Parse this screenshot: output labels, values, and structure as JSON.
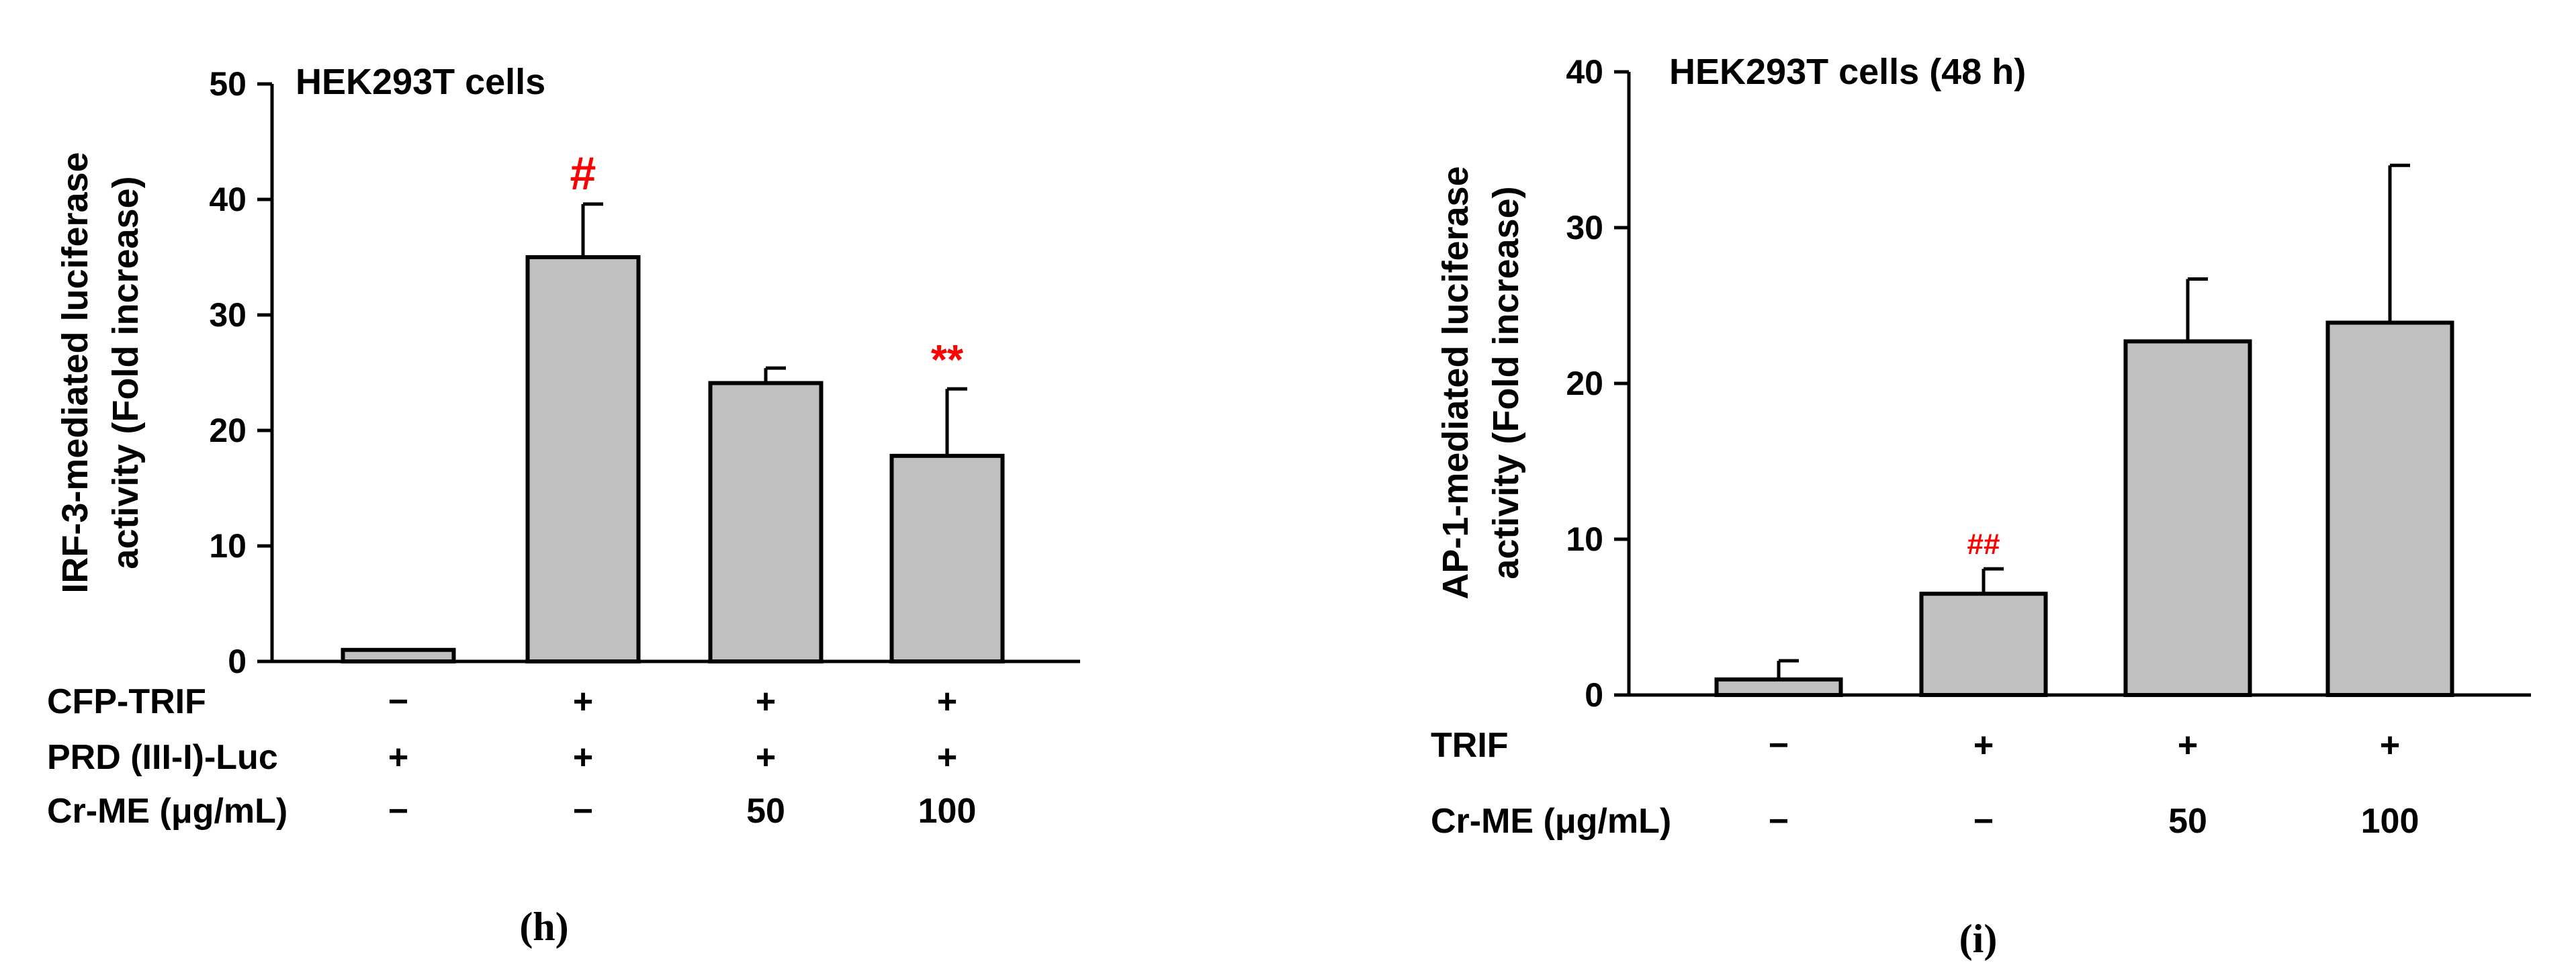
{
  "chart_data": [
    {
      "type": "bar",
      "panel_label": "(h)",
      "title": "HEK293T cells",
      "ylabel_line1": "IRF-3-mediated luciferase",
      "ylabel_line2": "activity (Fold increase)",
      "ylim": [
        0,
        50
      ],
      "yticks": [
        "0",
        "10",
        "20",
        "30",
        "40",
        "50"
      ],
      "ytick_values": [
        0,
        10,
        20,
        30,
        40,
        50
      ],
      "values": [
        1.0,
        35.0,
        24.1,
        17.8
      ],
      "errors": [
        0,
        4.6,
        1.3,
        5.8
      ],
      "bar_color": "#c0c0c0",
      "annotations": [
        "",
        "#",
        "",
        "**"
      ],
      "annotation_color": "#ff0000",
      "conditions": [
        {
          "label": "CFP-TRIF",
          "cells": [
            "−",
            "+",
            "+",
            "+"
          ]
        },
        {
          "label": "PRD (III-I)-Luc",
          "cells": [
            "+",
            "+",
            "+",
            "+"
          ]
        },
        {
          "label": "Cr-ME (μg/mL)",
          "cells": [
            "−",
            "−",
            "50",
            "100"
          ]
        }
      ]
    },
    {
      "type": "bar",
      "panel_label": "(i)",
      "title": "HEK293T cells (48 h)",
      "ylabel_line1": "AP-1-mediated luciferase",
      "ylabel_line2": "activity (Fold increase)",
      "ylim": [
        0,
        40
      ],
      "yticks": [
        "0",
        "10",
        "20",
        "30",
        "40"
      ],
      "ytick_values": [
        0,
        10,
        20,
        30,
        40
      ],
      "values": [
        1.0,
        6.5,
        22.7,
        23.9
      ],
      "errors": [
        1.2,
        1.6,
        4.0,
        10.1
      ],
      "bar_color": "#c0c0c0",
      "annotations": [
        "",
        "##",
        "",
        ""
      ],
      "annotation_color": "#ff0000",
      "conditions": [
        {
          "label": "TRIF",
          "cells": [
            "−",
            "+",
            "+",
            "+"
          ]
        },
        {
          "label": "Cr-ME (μg/mL)",
          "cells": [
            "−",
            "−",
            "50",
            "100"
          ]
        }
      ]
    }
  ]
}
